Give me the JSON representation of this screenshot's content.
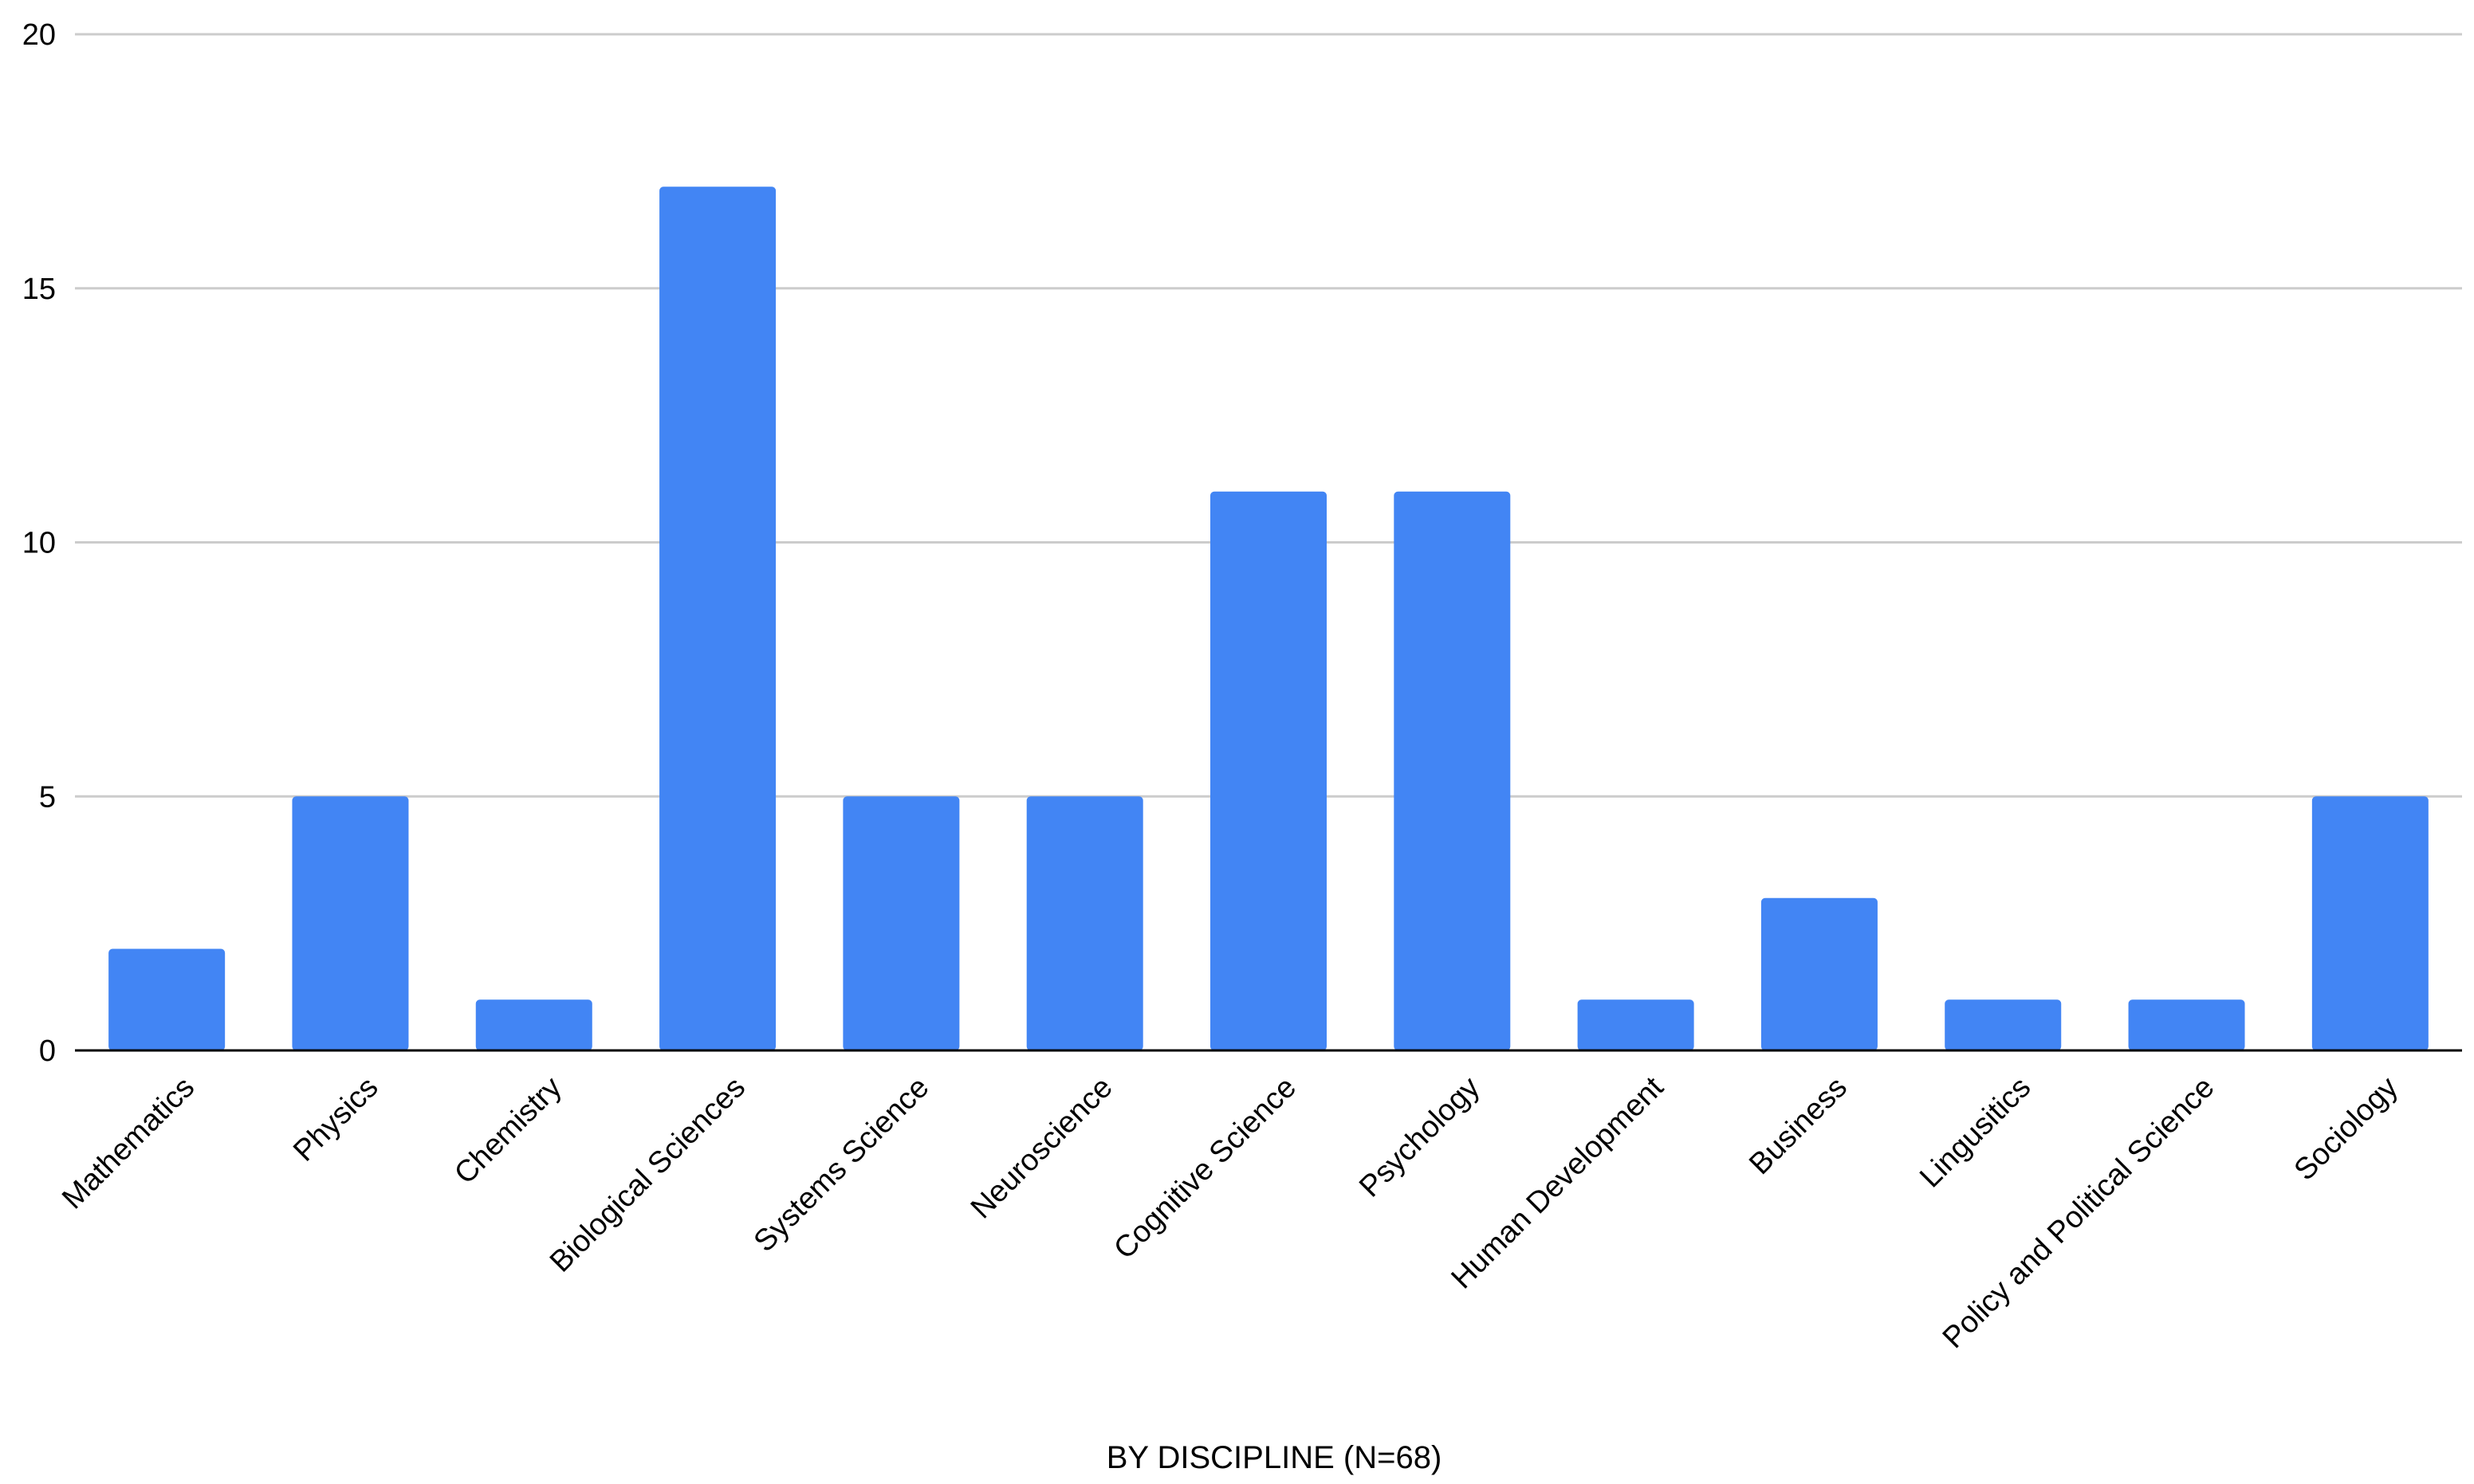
{
  "chart_data": {
    "type": "bar",
    "title": "",
    "xlabel": "BY DISCIPLINE (N=68)",
    "ylabel": "",
    "ylim": [
      0,
      20
    ],
    "yticks": [
      0,
      5,
      10,
      15,
      20
    ],
    "grid": true,
    "legend": "none",
    "bar_color": "#4285F4",
    "categories": [
      "Mathematics",
      "Physics",
      "Chemistry",
      "Biological Sciences",
      "Systems Science",
      "Neuroscience",
      "Cognitive Science",
      "Psychology",
      "Human Development",
      "Business",
      "Lingusitics",
      "Policy and Political Science",
      "Sociology"
    ],
    "values": [
      2,
      5,
      1,
      17,
      5,
      5,
      11,
      11,
      1,
      3,
      1,
      1,
      5
    ]
  }
}
